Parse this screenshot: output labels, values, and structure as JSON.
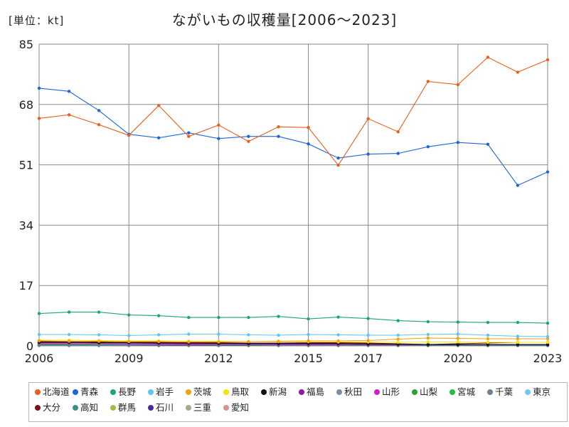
{
  "unit_label": "[単位：kt]",
  "chart_data": {
    "type": "line",
    "title": "ながいもの収穫量[2006〜2023]",
    "xlabel": "",
    "ylabel": "kt",
    "x": [
      2006,
      2007,
      2008,
      2009,
      2010,
      2011,
      2012,
      2013,
      2014,
      2015,
      2016,
      2017,
      2018,
      2019,
      2020,
      2021,
      2022,
      2023
    ],
    "x_ticks": [
      "2006",
      "2009",
      "2012",
      "2015",
      "2017",
      "2020",
      "2023"
    ],
    "y_ticks": [
      "0",
      "17",
      "34",
      "51",
      "68",
      "85"
    ],
    "ylim": [
      0,
      85
    ],
    "grid": true,
    "legend_position": "bottom",
    "series": [
      {
        "name": "北海道",
        "color": "#e8601c",
        "values": [
          64.1,
          65.1,
          62.3,
          59.3,
          67.7,
          59.0,
          62.2,
          57.6,
          61.7,
          61.5,
          50.9,
          64.0,
          60.3,
          74.5,
          73.6,
          81.3,
          77.1,
          80.6
        ]
      },
      {
        "name": "青森",
        "color": "#1f66d6",
        "values": [
          72.6,
          71.7,
          66.3,
          59.6,
          58.6,
          60.0,
          58.4,
          59.0,
          59.0,
          56.9,
          52.9,
          54.0,
          54.2,
          56.1,
          57.3,
          56.8,
          45.2,
          49.0
        ]
      },
      {
        "name": "長野",
        "color": "#1aa67a",
        "values": [
          9.1,
          9.5,
          9.5,
          8.7,
          8.5,
          8.0,
          8.0,
          8.0,
          8.3,
          7.6,
          8.1,
          7.7,
          7.1,
          6.8,
          6.7,
          6.6,
          6.6,
          6.4
        ]
      },
      {
        "name": "岩手",
        "color": "#5cc7ef",
        "values": [
          3.2,
          3.2,
          3.1,
          2.9,
          3.1,
          3.3,
          3.3,
          3.1,
          3.0,
          3.2,
          3.1,
          3.0,
          3.0,
          3.2,
          3.3,
          3.0,
          2.7,
          2.6
        ]
      },
      {
        "name": "茨城",
        "color": "#f0a30a",
        "values": [
          1.4,
          1.3,
          1.3,
          1.2,
          1.2,
          1.1,
          1.1,
          1.2,
          1.3,
          1.4,
          1.4,
          1.5,
          1.9,
          2.2,
          2.1,
          2.0,
          2.0,
          2.0
        ]
      },
      {
        "name": "鳥取",
        "color": "#f5e20a",
        "values": [
          1.6,
          1.6,
          1.5,
          1.4,
          1.4,
          1.3,
          1.3,
          1.2,
          1.2,
          1.2,
          1.1,
          1.1,
          1.0,
          1.1,
          1.1,
          1.0,
          1.0,
          1.0
        ]
      },
      {
        "name": "新潟",
        "color": "#111111",
        "values": [
          1.0,
          1.0,
          0.9,
          0.9,
          0.8,
          0.8,
          0.7,
          0.7,
          0.7,
          0.7,
          0.7,
          0.6,
          0.5,
          0.4,
          0.4,
          0.4,
          0.4,
          0.4
        ]
      },
      {
        "name": "福島",
        "color": "#8a1aa0",
        "values": [
          0.9,
          0.9,
          0.8,
          0.8,
          0.7,
          0.6,
          0.6,
          0.5,
          0.5,
          0.5,
          0.5,
          0.4,
          0.4,
          0.3,
          0.3,
          0.3,
          0.3,
          0.3
        ]
      },
      {
        "name": "秋田",
        "color": "#7f8c99",
        "values": [
          0.7,
          0.7,
          0.6,
          0.6,
          0.6,
          0.6,
          0.5,
          0.5,
          0.5,
          0.5,
          0.5,
          0.5,
          0.4,
          0.4,
          0.4,
          0.4,
          0.4,
          0.4
        ]
      },
      {
        "name": "山形",
        "color": "#d21cc8",
        "values": [
          0.5,
          0.5,
          0.5,
          0.4,
          0.4,
          0.4,
          0.4,
          0.4,
          0.3,
          0.3,
          0.3,
          0.3,
          0.3,
          0.3,
          0.3,
          0.3,
          0.3,
          0.3
        ]
      },
      {
        "name": "山梨",
        "color": "#2e9e3a",
        "values": [
          0.4,
          0.4,
          0.4,
          0.4,
          0.3,
          0.3,
          0.3,
          0.3,
          0.3,
          0.3,
          0.3,
          0.3,
          0.2,
          0.2,
          0.2,
          0.2,
          0.2,
          0.2
        ]
      },
      {
        "name": "宮城",
        "color": "#20c040",
        "values": [
          0.3,
          0.3,
          0.3,
          0.3,
          0.3,
          0.3,
          0.3,
          0.2,
          0.2,
          0.2,
          0.2,
          0.2,
          0.2,
          0.2,
          0.2,
          0.2,
          0.2,
          0.2
        ]
      },
      {
        "name": "千葉",
        "color": "#6e7f8f",
        "values": [
          0.3,
          0.3,
          0.3,
          0.3,
          0.2,
          0.2,
          0.2,
          0.2,
          0.2,
          0.2,
          0.2,
          0.2,
          0.2,
          0.2,
          0.2,
          0.2,
          0.2,
          0.2
        ]
      },
      {
        "name": "東京",
        "color": "#6fc9e8",
        "values": [
          0.2,
          0.2,
          0.2,
          0.2,
          0.2,
          0.2,
          0.2,
          0.2,
          0.2,
          0.2,
          0.2,
          0.2,
          0.2,
          0.2,
          0.2,
          0.2,
          0.2,
          0.2
        ]
      },
      {
        "name": "大分",
        "color": "#7a1010",
        "values": [
          1.2,
          1.2,
          1.1,
          1.0,
          1.0,
          0.9,
          0.9,
          0.8,
          0.8,
          0.9,
          0.9,
          0.8,
          0.6,
          0.4,
          0.6,
          0.8,
          1.0,
          1.0
        ]
      },
      {
        "name": "高知",
        "color": "#3a8f86",
        "values": [
          0.2,
          0.2,
          0.2,
          0.2,
          0.2,
          0.2,
          0.2,
          0.2,
          0.1,
          0.1,
          0.1,
          0.1,
          0.1,
          0.1,
          0.1,
          0.1,
          0.1,
          0.1
        ]
      },
      {
        "name": "群馬",
        "color": "#9cbf4a",
        "values": [
          0.2,
          0.2,
          0.2,
          0.2,
          0.2,
          0.2,
          0.2,
          0.2,
          0.2,
          0.2,
          0.2,
          0.2,
          0.2,
          0.2,
          0.2,
          0.2,
          0.2,
          0.2
        ]
      },
      {
        "name": "石川",
        "color": "#4b2a9e",
        "values": [
          0.1,
          0.1,
          0.1,
          0.1,
          0.1,
          0.1,
          0.1,
          0.1,
          0.1,
          0.1,
          0.1,
          0.1,
          0.1,
          0.1,
          0.1,
          0.1,
          0.1,
          0.1
        ]
      },
      {
        "name": "三重",
        "color": "#a3ad8a",
        "values": [
          0.1,
          0.1,
          0.1,
          0.1,
          0.1,
          0.1,
          0.1,
          0.1,
          0.1,
          0.1,
          0.1,
          0.1,
          0.1,
          0.1,
          0.1,
          0.1,
          0.1,
          0.1
        ]
      },
      {
        "name": "愛知",
        "color": "#d9948a",
        "values": [
          0.1,
          0.1,
          0.1,
          0.1,
          0.1,
          0.1,
          0.1,
          0.1,
          0.1,
          0.1,
          0.1,
          0.1,
          0.1,
          0.1,
          0.1,
          0.1,
          0.1,
          0.1
        ]
      }
    ]
  }
}
